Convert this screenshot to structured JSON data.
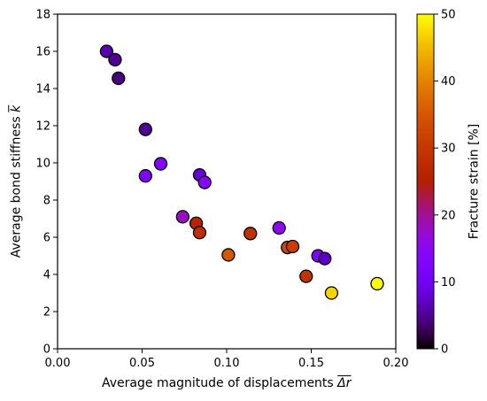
{
  "chart_data": {
    "type": "scatter",
    "title": "",
    "xlabel": "Average magnitude of displacements",
    "xlabel_symbol": "Δr",
    "ylabel": "Average bond stiffness",
    "ylabel_symbol": "k",
    "xlim": [
      0.0,
      0.2
    ],
    "ylim": [
      0,
      18
    ],
    "xticks": [
      0.0,
      0.05,
      0.1,
      0.15,
      0.2
    ],
    "xtick_labels": [
      "0.00",
      "0.05",
      "0.10",
      "0.15",
      "0.20"
    ],
    "yticks": [
      0,
      2,
      4,
      6,
      8,
      10,
      12,
      14,
      16,
      18
    ],
    "ytick_labels": [
      "0",
      "2",
      "4",
      "6",
      "8",
      "10",
      "12",
      "14",
      "16",
      "18"
    ],
    "grid": false,
    "colormap": "gnuplot",
    "colorbar": {
      "label": "Fracture strain [%]",
      "range": [
        0,
        50
      ],
      "ticks": [
        0,
        10,
        20,
        30,
        40,
        50
      ],
      "tick_labels": [
        "0",
        "10",
        "20",
        "30",
        "40",
        "50"
      ]
    },
    "points": [
      {
        "x": 0.029,
        "y": 16.0,
        "strain": 6
      },
      {
        "x": 0.034,
        "y": 15.55,
        "strain": 5
      },
      {
        "x": 0.036,
        "y": 14.55,
        "strain": 4
      },
      {
        "x": 0.052,
        "y": 11.8,
        "strain": 5
      },
      {
        "x": 0.052,
        "y": 9.3,
        "strain": 12
      },
      {
        "x": 0.061,
        "y": 9.95,
        "strain": 13
      },
      {
        "x": 0.084,
        "y": 9.35,
        "strain": 8
      },
      {
        "x": 0.087,
        "y": 8.95,
        "strain": 14
      },
      {
        "x": 0.074,
        "y": 7.1,
        "strain": 18
      },
      {
        "x": 0.082,
        "y": 6.75,
        "strain": 26
      },
      {
        "x": 0.084,
        "y": 6.25,
        "strain": 28
      },
      {
        "x": 0.101,
        "y": 5.05,
        "strain": 35
      },
      {
        "x": 0.114,
        "y": 6.2,
        "strain": 29
      },
      {
        "x": 0.131,
        "y": 6.5,
        "strain": 15
      },
      {
        "x": 0.136,
        "y": 5.45,
        "strain": 33
      },
      {
        "x": 0.139,
        "y": 5.5,
        "strain": 31
      },
      {
        "x": 0.147,
        "y": 3.9,
        "strain": 29
      },
      {
        "x": 0.154,
        "y": 5.0,
        "strain": 12
      },
      {
        "x": 0.158,
        "y": 4.85,
        "strain": 7
      },
      {
        "x": 0.162,
        "y": 3.0,
        "strain": 47
      },
      {
        "x": 0.189,
        "y": 3.5,
        "strain": 50
      }
    ]
  }
}
